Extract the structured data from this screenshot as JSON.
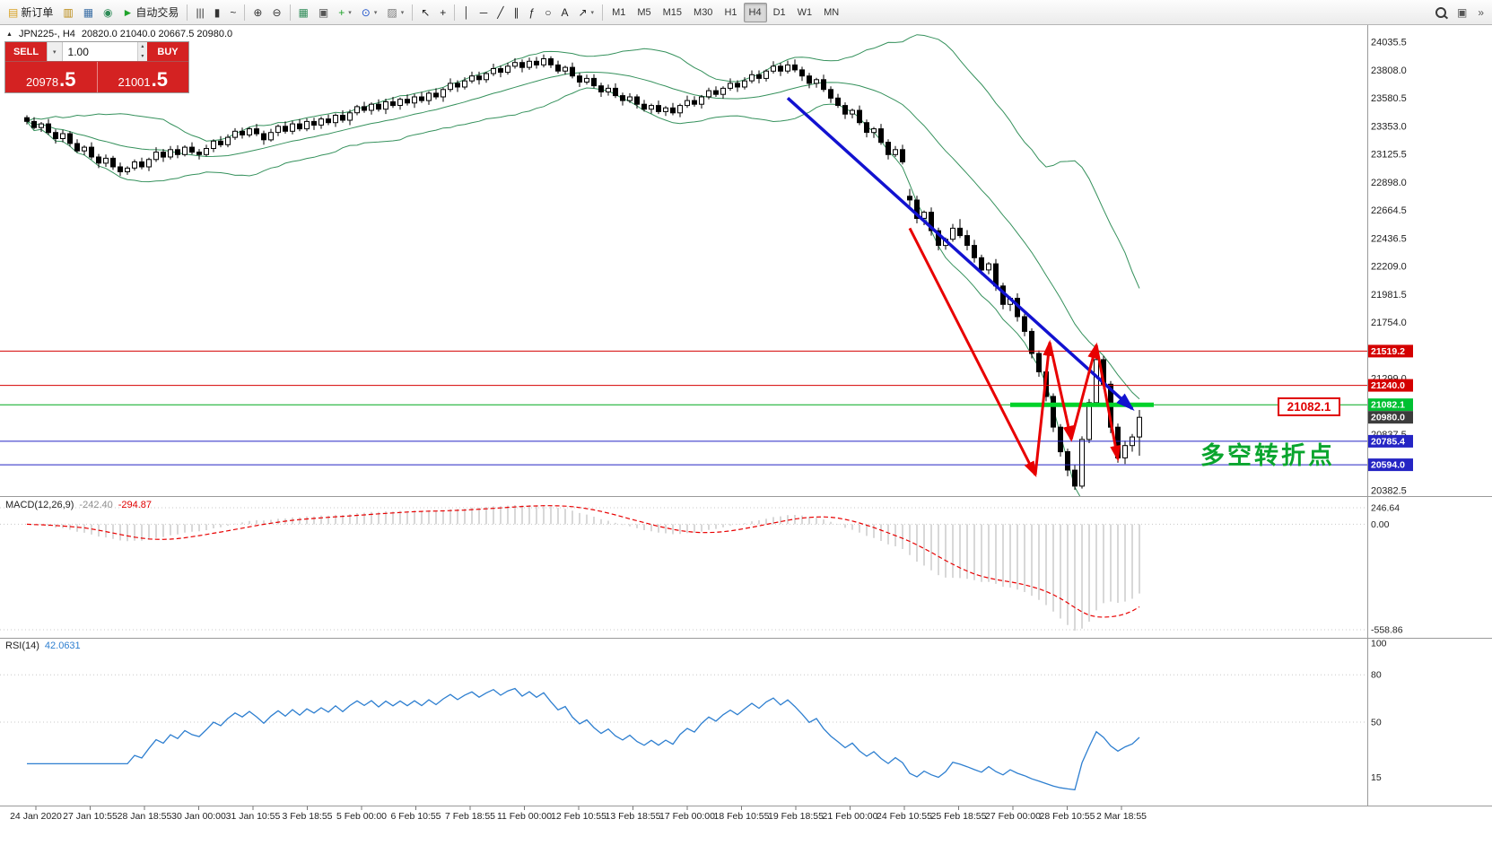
{
  "icons": {
    "caret_down": "▾",
    "spinner_up": "▴",
    "spinner_down": "▾",
    "collapse_triangle": "▲"
  },
  "toolbar": {
    "timeframes": [
      "M1",
      "M5",
      "M15",
      "M30",
      "H1",
      "H4",
      "D1",
      "W1",
      "MN"
    ],
    "active_timeframe": "H4",
    "left_buttons": [
      {
        "name": "new-order-button",
        "glyph": "▤",
        "glyph_color": "#d8a021",
        "label": "新订单"
      },
      {
        "name": "chart-window-icon",
        "glyph": "▥",
        "glyph_color": "#b8860b"
      },
      {
        "name": "profile-icon",
        "glyph": "▦",
        "glyph_color": "#3a6ea5"
      },
      {
        "name": "alerts-icon",
        "glyph": "◉",
        "glyph_color": "#2e8b57"
      },
      {
        "name": "autotrade-button",
        "glyph": "►",
        "glyph_color": "#1fa32a",
        "label": "自动交易"
      },
      {
        "sep": true
      },
      {
        "name": "bar-chart-icon",
        "glyph": "|||",
        "glyph_color": "#333"
      },
      {
        "name": "candlestick-chart-icon",
        "glyph": "▮",
        "glyph_color": "#333"
      },
      {
        "name": "line-chart-icon",
        "glyph": "~",
        "glyph_color": "#333"
      },
      {
        "sep": true
      },
      {
        "name": "zoom-in-icon",
        "glyph": "⊕",
        "glyph_color": "#333"
      },
      {
        "name": "zoom-out-icon",
        "glyph": "⊖",
        "glyph_color": "#333"
      },
      {
        "sep": true
      },
      {
        "name": "tile-windows-icon",
        "glyph": "▦",
        "glyph_color": "#2e8b57"
      },
      {
        "name": "cascade-windows-icon",
        "glyph": "▣",
        "glyph_color": "#555"
      },
      {
        "name": "indicators-icon",
        "glyph": "+",
        "glyph_color": "#1fa32a",
        "caret": true
      },
      {
        "name": "periods-icon",
        "glyph": "⊙",
        "glyph_color": "#2255cc",
        "caret": true
      },
      {
        "name": "templates-icon",
        "glyph": "▨",
        "glyph_color": "#777",
        "caret": true
      },
      {
        "sep": true
      },
      {
        "name": "cursor-icon",
        "glyph": "↖",
        "glyph_color": "#222"
      },
      {
        "name": "crosshair-icon",
        "glyph": "+",
        "glyph_color": "#222"
      },
      {
        "sep": true
      },
      {
        "name": "vertical-line-icon",
        "glyph": "│",
        "glyph_color": "#222"
      },
      {
        "name": "horizontal-line-icon",
        "glyph": "─",
        "glyph_color": "#222"
      },
      {
        "name": "trendline-icon",
        "glyph": "╱",
        "glyph_color": "#222"
      },
      {
        "name": "channel-icon",
        "glyph": "∥",
        "glyph_color": "#222"
      },
      {
        "name": "fibonacci-icon",
        "glyph": "ƒ",
        "glyph_color": "#222"
      },
      {
        "name": "shapes-icon",
        "glyph": "○",
        "glyph_color": "#222"
      },
      {
        "name": "text-icon",
        "glyph": "A",
        "glyph_color": "#222"
      },
      {
        "name": "arrows-icon",
        "glyph": "↗",
        "glyph_color": "#222",
        "caret": true
      },
      {
        "sep": true
      }
    ],
    "right_buttons": [
      {
        "name": "search-icon",
        "glyph": "MAG"
      },
      {
        "name": "expand-window-icon",
        "glyph": "▣",
        "glyph_color": "#555"
      },
      {
        "name": "toolbar-overflow-icon",
        "glyph": "»",
        "glyph_color": "#555"
      }
    ]
  },
  "header": {
    "symbol_period": "JPN225-, H4",
    "ohlc": "20820.0 21040.0 20667.5 20980.0"
  },
  "trade_panel": {
    "sell_label": "SELL",
    "buy_label": "BUY",
    "volume": "1.00",
    "sell_price": "20978",
    "sell_price_big": ".5",
    "buy_price": "21001",
    "buy_price_big": ".5"
  },
  "chart": {
    "callout": "21082.1",
    "annotation": "多空转折点",
    "level_lines": [
      {
        "price": 21519.2,
        "label": "21519.2",
        "color": "#d40000",
        "label_bg": "#d40000"
      },
      {
        "price": 21240.0,
        "label": "21240.0",
        "color": "#d40000",
        "label_bg": "#d40000"
      },
      {
        "price": 21082.1,
        "label": "21082.1",
        "color": "#00a81e",
        "label_bg": "#00c032"
      },
      {
        "price": 20980.0,
        "label": "20980.0",
        "color": null,
        "label_bg": "#3c3c3c"
      },
      {
        "price": 20785.4,
        "label": "20785.4",
        "color": "#2525c4",
        "label_bg": "#2525c4"
      },
      {
        "price": 20594.0,
        "label": "20594.0",
        "color": "#2525c4",
        "label_bg": "#2525c4"
      }
    ],
    "support_segment": {
      "price": 21082.1,
      "bar_start": 137,
      "bar_end": 157
    },
    "blue_trendline": {
      "bar1": 106,
      "price1": 23580,
      "bar2": 154,
      "price2": 21050
    },
    "red_zigzag": [
      [
        123,
        22520
      ],
      [
        140.5,
        20510
      ],
      [
        142.5,
        21590
      ],
      [
        145.5,
        20800
      ],
      [
        149,
        21570
      ],
      [
        152,
        20640
      ]
    ]
  },
  "chart_data": {
    "type": "candlestick",
    "symbol": "JPN225-",
    "timeframe": "H4",
    "title": "JPN225-, H4 20820.0 21040.0 20667.5 20980.0",
    "y_axis": {
      "min": 20382.5,
      "max": 24035.5,
      "labels": [
        "24035.5",
        "23808.0",
        "23580.5",
        "23353.0",
        "23125.5",
        "22898.0",
        "22664.5",
        "22436.5",
        "22209.0",
        "21981.5",
        "21754.0",
        "21526.5",
        "21299.0",
        "21071.5",
        "20837.5",
        "20610.0",
        "20382.5"
      ]
    },
    "x_labels": [
      "24 Jan 2020",
      "27 Jan 10:55",
      "28 Jan 18:55",
      "30 Jan 00:00",
      "31 Jan 10:55",
      "3 Feb 18:55",
      "5 Feb 00:00",
      "6 Feb 10:55",
      "7 Feb 18:55",
      "11 Feb 00:00",
      "12 Feb 10:55",
      "13 Feb 18:55",
      "17 Feb 00:00",
      "18 Feb 10:55",
      "19 Feb 18:55",
      "21 Feb 00:00",
      "24 Feb 10:55",
      "25 Feb 18:55",
      "27 Feb 00:00",
      "28 Feb 10:55",
      "2 Mar 18:55"
    ],
    "candles": [
      [
        23420,
        23440,
        23365,
        23390
      ],
      [
        23390,
        23425,
        23325,
        23340
      ],
      [
        23340,
        23385,
        23305,
        23370
      ],
      [
        23370,
        23410,
        23280,
        23300
      ],
      [
        23300,
        23325,
        23210,
        23250
      ],
      [
        23250,
        23320,
        23220,
        23290
      ],
      [
        23290,
        23310,
        23185,
        23210
      ],
      [
        23210,
        23245,
        23135,
        23150
      ],
      [
        23150,
        23195,
        23115,
        23180
      ],
      [
        23180,
        23220,
        23080,
        23100
      ],
      [
        23100,
        23125,
        23010,
        23050
      ],
      [
        23050,
        23120,
        23020,
        23090
      ],
      [
        23090,
        23110,
        22995,
        23020
      ],
      [
        23020,
        23055,
        22945,
        22980
      ],
      [
        22980,
        23025,
        22955,
        23010
      ],
      [
        23010,
        23080,
        22990,
        23060
      ],
      [
        23060,
        23095,
        23000,
        23020
      ],
      [
        23020,
        23095,
        22985,
        23080
      ],
      [
        23080,
        23180,
        23060,
        23140
      ],
      [
        23140,
        23165,
        23060,
        23100
      ],
      [
        23100,
        23190,
        23080,
        23160
      ],
      [
        23160,
        23195,
        23090,
        23120
      ],
      [
        23120,
        23195,
        23105,
        23180
      ],
      [
        23180,
        23220,
        23120,
        23140
      ],
      [
        23140,
        23165,
        23080,
        23120
      ],
      [
        23120,
        23200,
        23105,
        23170
      ],
      [
        23170,
        23245,
        23140,
        23230
      ],
      [
        23230,
        23270,
        23180,
        23200
      ],
      [
        23200,
        23285,
        23180,
        23260
      ],
      [
        23260,
        23335,
        23240,
        23310
      ],
      [
        23310,
        23340,
        23250,
        23280
      ],
      [
        23280,
        23345,
        23260,
        23330
      ],
      [
        23330,
        23370,
        23270,
        23290
      ],
      [
        23290,
        23315,
        23200,
        23240
      ],
      [
        23240,
        23330,
        23225,
        23300
      ],
      [
        23300,
        23365,
        23270,
        23350
      ],
      [
        23350,
        23390,
        23290,
        23310
      ],
      [
        23310,
        23395,
        23285,
        23370
      ],
      [
        23370,
        23410,
        23310,
        23330
      ],
      [
        23330,
        23415,
        23310,
        23390
      ],
      [
        23390,
        23420,
        23320,
        23360
      ],
      [
        23360,
        23430,
        23330,
        23410
      ],
      [
        23410,
        23445,
        23360,
        23380
      ],
      [
        23380,
        23455,
        23345,
        23440
      ],
      [
        23440,
        23480,
        23380,
        23400
      ],
      [
        23400,
        23485,
        23360,
        23460
      ],
      [
        23460,
        23525,
        23440,
        23510
      ],
      [
        23510,
        23550,
        23460,
        23480
      ],
      [
        23480,
        23545,
        23445,
        23530
      ],
      [
        23530,
        23570,
        23470,
        23490
      ],
      [
        23490,
        23575,
        23450,
        23550
      ],
      [
        23550,
        23590,
        23500,
        23520
      ],
      [
        23520,
        23585,
        23485,
        23570
      ],
      [
        23570,
        23610,
        23520,
        23540
      ],
      [
        23540,
        23615,
        23500,
        23590
      ],
      [
        23590,
        23630,
        23540,
        23560
      ],
      [
        23560,
        23635,
        23525,
        23620
      ],
      [
        23620,
        23660,
        23570,
        23590
      ],
      [
        23590,
        23665,
        23550,
        23650
      ],
      [
        23650,
        23740,
        23630,
        23700
      ],
      [
        23700,
        23725,
        23630,
        23670
      ],
      [
        23670,
        23750,
        23650,
        23720
      ],
      [
        23720,
        23795,
        23700,
        23760
      ],
      [
        23760,
        23795,
        23690,
        23730
      ],
      [
        23730,
        23795,
        23705,
        23780
      ],
      [
        23780,
        23860,
        23760,
        23820
      ],
      [
        23820,
        23845,
        23750,
        23790
      ],
      [
        23790,
        23870,
        23770,
        23840
      ],
      [
        23840,
        23905,
        23820,
        23870
      ],
      [
        23870,
        23895,
        23790,
        23830
      ],
      [
        23830,
        23910,
        23810,
        23880
      ],
      [
        23880,
        23915,
        23820,
        23850
      ],
      [
        23850,
        23935,
        23830,
        23900
      ],
      [
        23900,
        23920,
        23825,
        23850
      ],
      [
        23850,
        23885,
        23780,
        23800
      ],
      [
        23800,
        23845,
        23770,
        23830
      ],
      [
        23830,
        23870,
        23740,
        23760
      ],
      [
        23760,
        23785,
        23670,
        23710
      ],
      [
        23710,
        23770,
        23690,
        23740
      ],
      [
        23740,
        23775,
        23660,
        23680
      ],
      [
        23680,
        23705,
        23590,
        23630
      ],
      [
        23630,
        23690,
        23600,
        23660
      ],
      [
        23660,
        23700,
        23580,
        23600
      ],
      [
        23600,
        23625,
        23520,
        23560
      ],
      [
        23560,
        23620,
        23540,
        23590
      ],
      [
        23590,
        23610,
        23495,
        23530
      ],
      [
        23530,
        23565,
        23470,
        23490
      ],
      [
        23490,
        23535,
        23455,
        23520
      ],
      [
        23520,
        23560,
        23450,
        23470
      ],
      [
        23470,
        23515,
        23435,
        23500
      ],
      [
        23500,
        23540,
        23440,
        23460
      ],
      [
        23460,
        23535,
        23425,
        23520
      ],
      [
        23520,
        23600,
        23500,
        23560
      ],
      [
        23560,
        23595,
        23510,
        23530
      ],
      [
        23530,
        23605,
        23495,
        23590
      ],
      [
        23590,
        23665,
        23570,
        23640
      ],
      [
        23640,
        23675,
        23590,
        23610
      ],
      [
        23610,
        23675,
        23575,
        23660
      ],
      [
        23660,
        23740,
        23640,
        23700
      ],
      [
        23700,
        23725,
        23630,
        23670
      ],
      [
        23670,
        23750,
        23650,
        23720
      ],
      [
        23720,
        23805,
        23700,
        23770
      ],
      [
        23770,
        23805,
        23700,
        23740
      ],
      [
        23740,
        23815,
        23715,
        23800
      ],
      [
        23800,
        23880,
        23780,
        23840
      ],
      [
        23840,
        23865,
        23760,
        23800
      ],
      [
        23800,
        23885,
        23780,
        23850
      ],
      [
        23850,
        23895,
        23790,
        23810
      ],
      [
        23810,
        23835,
        23720,
        23760
      ],
      [
        23760,
        23785,
        23660,
        23700
      ],
      [
        23700,
        23745,
        23665,
        23730
      ],
      [
        23730,
        23770,
        23630,
        23650
      ],
      [
        23650,
        23675,
        23540,
        23580
      ],
      [
        23580,
        23615,
        23500,
        23520
      ],
      [
        23520,
        23545,
        23410,
        23450
      ],
      [
        23450,
        23495,
        23415,
        23480
      ],
      [
        23480,
        23520,
        23360,
        23380
      ],
      [
        23380,
        23405,
        23260,
        23300
      ],
      [
        23300,
        23345,
        23255,
        23330
      ],
      [
        23330,
        23370,
        23200,
        23220
      ],
      [
        23220,
        23245,
        23080,
        23120
      ],
      [
        23120,
        23190,
        23100,
        23160
      ],
      [
        23160,
        23200,
        23040,
        23060
      ],
      [
        22780,
        22840,
        22700,
        22750
      ],
      [
        22750,
        22785,
        22560,
        22600
      ],
      [
        22600,
        22665,
        22545,
        22650
      ],
      [
        22650,
        22690,
        22460,
        22500
      ],
      [
        22500,
        22525,
        22340,
        22380
      ],
      [
        22380,
        22445,
        22345,
        22430
      ],
      [
        22430,
        22555,
        22410,
        22520
      ],
      [
        22520,
        22595,
        22440,
        22460
      ],
      [
        22460,
        22505,
        22340,
        22380
      ],
      [
        22380,
        22425,
        22240,
        22280
      ],
      [
        22280,
        22305,
        22140,
        22180
      ],
      [
        22180,
        22245,
        22145,
        22230
      ],
      [
        22230,
        22270,
        22010,
        22050
      ],
      [
        22050,
        22075,
        21860,
        21900
      ],
      [
        21900,
        21965,
        21845,
        21950
      ],
      [
        21950,
        21990,
        21760,
        21800
      ],
      [
        21800,
        21825,
        21640,
        21680
      ],
      [
        21680,
        21705,
        21460,
        21500
      ],
      [
        21500,
        21525,
        21310,
        21350
      ],
      [
        21350,
        21375,
        21110,
        21150
      ],
      [
        21150,
        21175,
        20860,
        20900
      ],
      [
        20900,
        20925,
        20660,
        20700
      ],
      [
        20700,
        20725,
        20500,
        20550
      ],
      [
        20550,
        20590,
        20390,
        20420
      ],
      [
        20420,
        20825,
        20400,
        20800
      ],
      [
        20800,
        21130,
        20770,
        21100
      ],
      [
        21100,
        21520,
        21080,
        21450
      ],
      [
        21450,
        21480,
        21210,
        21250
      ],
      [
        21250,
        21275,
        20850,
        20900
      ],
      [
        20900,
        20930,
        20610,
        20650
      ],
      [
        20650,
        20790,
        20600,
        20750
      ],
      [
        20750,
        20845,
        20700,
        20820
      ],
      [
        20820,
        21040,
        20667.5,
        20980
      ]
    ],
    "indicators": {
      "bollinger": {
        "period": 20,
        "deviation": 2
      },
      "macd": {
        "name": "MACD(12,26,9)",
        "value_main": "-242.40",
        "value_signal": "-294.87",
        "axis_top": "246.64",
        "axis_zero": "0.00",
        "axis_bottom": "-558.86"
      },
      "rsi": {
        "name": "RSI(14)",
        "value": "42.0631",
        "axis_labels": [
          {
            "label": "100",
            "value": 100
          },
          {
            "label": "80",
            "value": 80
          },
          {
            "label": "50",
            "value": 50
          },
          {
            "label": "15",
            "value": 15
          }
        ],
        "levels": [
          80,
          50
        ]
      }
    }
  }
}
